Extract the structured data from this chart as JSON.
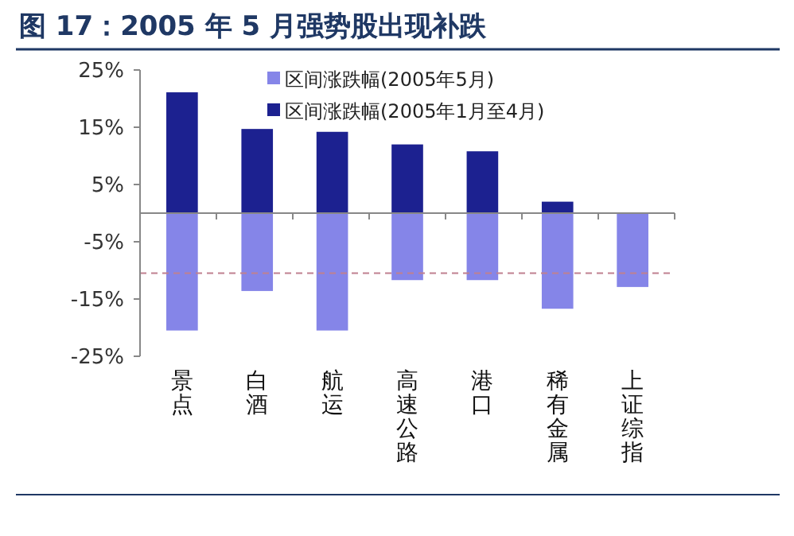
{
  "chart_data": {
    "type": "bar",
    "title": "图 17：2005 年 5 月强势股出现补跌",
    "categories": [
      "景点",
      "白酒",
      "航运",
      "高速公路",
      "港口",
      "稀有金属",
      "上证综指"
    ],
    "series": [
      {
        "name": "区间涨跌幅(2005年5月)",
        "color": "#8585e8",
        "values": [
          -20.5,
          -13.6,
          -20.5,
          -11.7,
          -11.7,
          -16.7,
          -12.9
        ]
      },
      {
        "name": "区间涨跌幅(2005年1月至4月)",
        "color": "#1c2190",
        "values": [
          21.1,
          14.7,
          14.2,
          12,
          10.8,
          2,
          null
        ]
      }
    ],
    "ylim": [
      -25,
      25
    ],
    "yticks": [
      {
        "value": 25,
        "label": "25%"
      },
      {
        "value": 15,
        "label": "15%"
      },
      {
        "value": 5,
        "label": "5%"
      },
      {
        "value": -5,
        "label": "-5%"
      },
      {
        "value": -15,
        "label": "-15%"
      },
      {
        "value": -25,
        "label": "-25%"
      }
    ],
    "ref_lines": [
      {
        "axis": "y",
        "value": -10.5,
        "color": "#c08090",
        "line_style": "dashed"
      }
    ],
    "legend": "top",
    "grid": false,
    "stacked": true
  }
}
